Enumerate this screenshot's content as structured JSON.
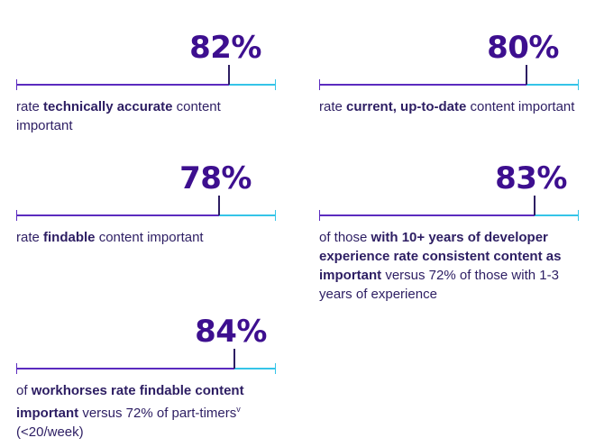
{
  "colors": {
    "accent": "#3d0f8f",
    "accent_dark": "#2d1e63",
    "bar_start": "#5b2bbf",
    "bar_end": "#35c4e8"
  },
  "chart_data": {
    "type": "bar",
    "categories": [
      "technically accurate content",
      "current, up-to-date content",
      "findable content",
      "consistent content (10+ years of developer experience)",
      "findable content (workhorses)"
    ],
    "values": [
      82,
      80,
      78,
      83,
      84
    ],
    "unit": "%",
    "xlim": [
      0,
      100
    ]
  },
  "stats": [
    {
      "value": "82%",
      "pct": 82,
      "desc": [
        {
          "t": "rate ",
          "b": false
        },
        {
          "t": "technically accurate",
          "b": true
        },
        {
          "t": " content important",
          "b": false
        }
      ]
    },
    {
      "value": "80%",
      "pct": 80,
      "desc": [
        {
          "t": "rate ",
          "b": false
        },
        {
          "t": "current, up-to-date",
          "b": true
        },
        {
          "t": " content important",
          "b": false
        }
      ]
    },
    {
      "value": "78%",
      "pct": 78,
      "desc": [
        {
          "t": "rate ",
          "b": false
        },
        {
          "t": "findable",
          "b": true
        },
        {
          "t": " content important",
          "b": false
        }
      ]
    },
    {
      "value": "83%",
      "pct": 83,
      "desc": [
        {
          "t": "of those ",
          "b": false
        },
        {
          "t": "with 10+ years of developer experience rate consistent content as important",
          "b": true
        },
        {
          "t": " versus 72% of those with 1-3 years of experience",
          "b": false
        }
      ]
    },
    {
      "value": "84%",
      "pct": 84,
      "desc": [
        {
          "t": "of ",
          "b": false
        },
        {
          "t": "workhorses rate findable content important",
          "b": true
        },
        {
          "t": " versus 72% of part-timers",
          "b": false
        },
        {
          "t": "v",
          "b": false,
          "sup": true
        },
        {
          "t": " (<20/week)",
          "b": false
        }
      ]
    }
  ]
}
